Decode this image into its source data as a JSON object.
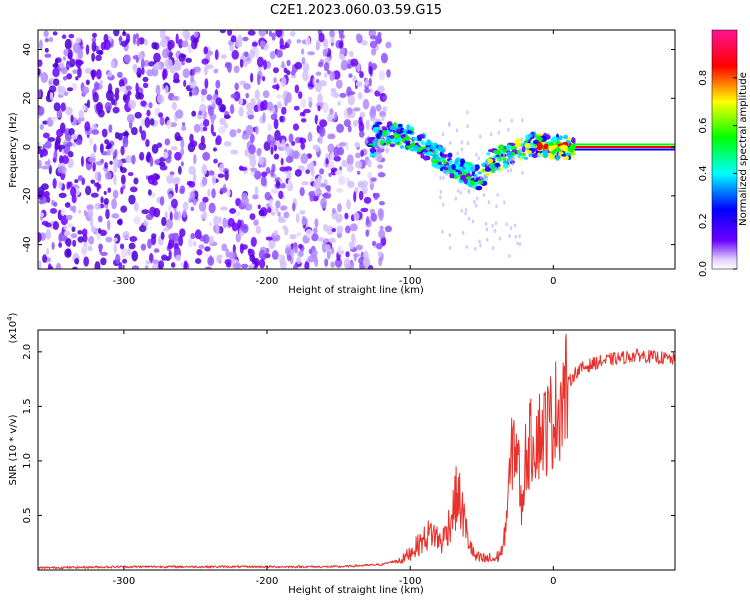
{
  "title": "C2E1.2023.060.03.59.G15",
  "colors": {
    "snr_line": "#e8312a",
    "scatter_base": "#6a00ff",
    "axis": "#000000"
  },
  "chart_data": [
    {
      "type": "heatmap",
      "xlabel": "Height of straight line (km)",
      "ylabel": "Frequency (Hz)",
      "xlim": [
        -360,
        85
      ],
      "ylim": [
        -50,
        48
      ],
      "xticks": [
        -300,
        -200,
        -100,
        0
      ],
      "yticks": [
        -40,
        -20,
        0,
        20,
        40
      ],
      "grid": false,
      "colorbar": {
        "label": "Normalized spectral amplitude",
        "range": [
          0,
          1
        ],
        "ticks": [
          0.0,
          0.2,
          0.4,
          0.6,
          0.8
        ],
        "colormap": [
          "#ffffff",
          "#6a00ff",
          "#0000ff",
          "#00ffff",
          "#00ff00",
          "#ffff00",
          "#ff0000",
          "#ff00a0"
        ]
      },
      "features": {
        "noise_region_x": [
          -360,
          -115
        ],
        "signal_trace": [
          {
            "x": -125,
            "y": 6
          },
          {
            "x": -100,
            "y": 4
          },
          {
            "x": -90,
            "y": 0
          },
          {
            "x": -80,
            "y": -4
          },
          {
            "x": -70,
            "y": -8
          },
          {
            "x": -60,
            "y": -11
          },
          {
            "x": -50,
            "y": -13
          },
          {
            "x": -45,
            "y": -6
          },
          {
            "x": -35,
            "y": -4
          },
          {
            "x": -25,
            "y": -2
          },
          {
            "x": -15,
            "y": 1
          },
          {
            "x": 0,
            "y": 0
          },
          {
            "x": 15,
            "y": 0
          },
          {
            "x": 85,
            "y": 0
          }
        ]
      }
    },
    {
      "type": "line",
      "xlabel": "Height of straight line (km)",
      "ylabel": "SNR (10 * v/v)",
      "scale_label": "(x10",
      "scale_exponent": "4",
      "scale_suffix": ")",
      "xlim": [
        -360,
        85
      ],
      "ylim": [
        0,
        2.2
      ],
      "xticks": [
        -300,
        -200,
        -100,
        0
      ],
      "yticks": [
        0.5,
        1.0,
        1.5,
        2.0
      ],
      "grid": false,
      "series": [
        {
          "x": [
            -360,
            -300,
            -250,
            -200,
            -150,
            -120,
            -105,
            -95,
            -85,
            -78,
            -72,
            -67,
            -63,
            -60,
            -55,
            -50,
            -45,
            -40,
            -35,
            -32,
            -30,
            -28,
            -25,
            -22,
            -20,
            -15,
            -10,
            -5,
            0,
            5,
            10,
            15,
            20,
            30,
            40,
            50,
            60,
            70,
            85
          ],
          "y": [
            0.02,
            0.03,
            0.03,
            0.03,
            0.03,
            0.05,
            0.1,
            0.22,
            0.35,
            0.25,
            0.45,
            0.7,
            0.5,
            0.3,
            0.12,
            0.1,
            0.1,
            0.1,
            0.2,
            0.6,
            0.9,
            1.2,
            1.1,
            0.5,
            1.0,
            1.2,
            1.25,
            1.3,
            1.4,
            1.55,
            1.7,
            1.8,
            1.85,
            1.9,
            1.93,
            1.95,
            1.97,
            1.95,
            1.93
          ]
        }
      ]
    }
  ]
}
